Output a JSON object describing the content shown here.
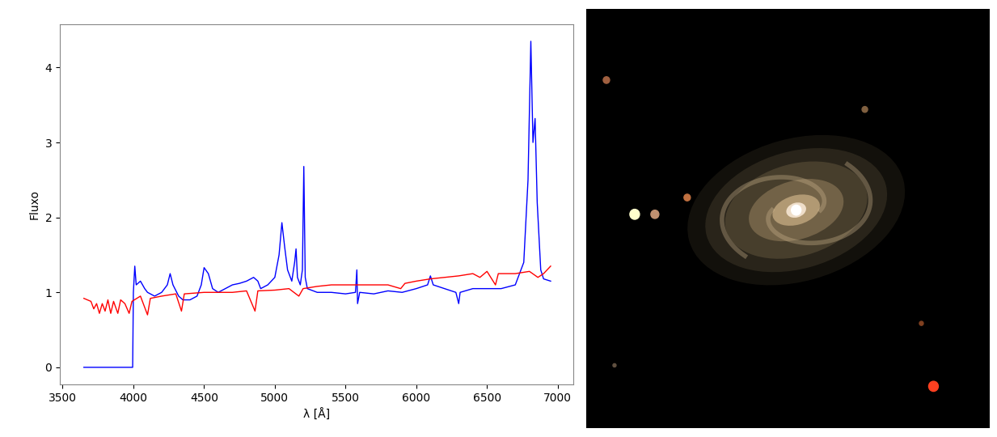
{
  "chart_data": {
    "type": "line",
    "x_label": "λ [Å]",
    "y_label": "Fluxo",
    "xlim": [
      3480,
      7110
    ],
    "ylim": [
      -0.23,
      4.58
    ],
    "xticks": [
      3500,
      4000,
      4500,
      5000,
      5500,
      6000,
      6500,
      7000
    ],
    "yticks": [
      0,
      1,
      2,
      3,
      4
    ],
    "grid": false,
    "series": [
      {
        "color": "#0000ff",
        "x": [
          3650,
          3995,
          4000,
          4010,
          4020,
          4050,
          4080,
          4100,
          4150,
          4200,
          4240,
          4260,
          4280,
          4320,
          4350,
          4400,
          4450,
          4480,
          4500,
          4530,
          4560,
          4600,
          4650,
          4700,
          4750,
          4800,
          4850,
          4880,
          4900,
          4950,
          5000,
          5030,
          5050,
          5070,
          5090,
          5120,
          5140,
          5150,
          5160,
          5180,
          5195,
          5205,
          5215,
          5230,
          5300,
          5400,
          5500,
          5570,
          5580,
          5585,
          5600,
          5700,
          5800,
          5900,
          6000,
          6080,
          6100,
          6120,
          6200,
          6280,
          6300,
          6310,
          6400,
          6500,
          6600,
          6700,
          6760,
          6790,
          6810,
          6825,
          6840,
          6855,
          6880,
          6900,
          6950
        ],
        "values": [
          0,
          0,
          1.0,
          1.35,
          1.1,
          1.15,
          1.05,
          1.0,
          0.95,
          1.0,
          1.1,
          1.25,
          1.1,
          0.95,
          0.9,
          0.9,
          0.95,
          1.1,
          1.33,
          1.25,
          1.05,
          1.0,
          1.05,
          1.1,
          1.12,
          1.15,
          1.2,
          1.15,
          1.05,
          1.1,
          1.2,
          1.5,
          1.93,
          1.6,
          1.3,
          1.15,
          1.4,
          1.58,
          1.2,
          1.1,
          1.3,
          2.68,
          1.2,
          1.05,
          1.0,
          1.0,
          0.98,
          1.0,
          1.3,
          0.85,
          1.0,
          0.98,
          1.02,
          1.0,
          1.05,
          1.1,
          1.22,
          1.1,
          1.05,
          1.0,
          0.85,
          1.0,
          1.05,
          1.05,
          1.05,
          1.1,
          1.4,
          2.5,
          4.35,
          3.0,
          3.32,
          2.2,
          1.3,
          1.18,
          1.15
        ]
      },
      {
        "color": "#ff0000",
        "x": [
          3650,
          3700,
          3720,
          3740,
          3760,
          3780,
          3800,
          3820,
          3840,
          3860,
          3890,
          3910,
          3940,
          3970,
          3990,
          4050,
          4100,
          4120,
          4200,
          4300,
          4340,
          4360,
          4500,
          4600,
          4700,
          4800,
          4860,
          4880,
          5000,
          5100,
          5170,
          5200,
          5300,
          5400,
          5500,
          5600,
          5700,
          5800,
          5890,
          5920,
          6000,
          6100,
          6200,
          6300,
          6400,
          6450,
          6500,
          6560,
          6580,
          6700,
          6800,
          6860,
          6900,
          6950
        ],
        "values": [
          0.92,
          0.88,
          0.78,
          0.85,
          0.72,
          0.85,
          0.75,
          0.9,
          0.72,
          0.88,
          0.72,
          0.9,
          0.85,
          0.72,
          0.88,
          0.95,
          0.7,
          0.92,
          0.95,
          0.98,
          0.75,
          0.98,
          1.0,
          1.0,
          1.0,
          1.02,
          0.75,
          1.02,
          1.03,
          1.05,
          0.95,
          1.05,
          1.08,
          1.1,
          1.1,
          1.1,
          1.1,
          1.1,
          1.05,
          1.12,
          1.15,
          1.18,
          1.2,
          1.22,
          1.25,
          1.2,
          1.28,
          1.1,
          1.25,
          1.25,
          1.28,
          1.2,
          1.25,
          1.35
        ]
      }
    ]
  }
}
